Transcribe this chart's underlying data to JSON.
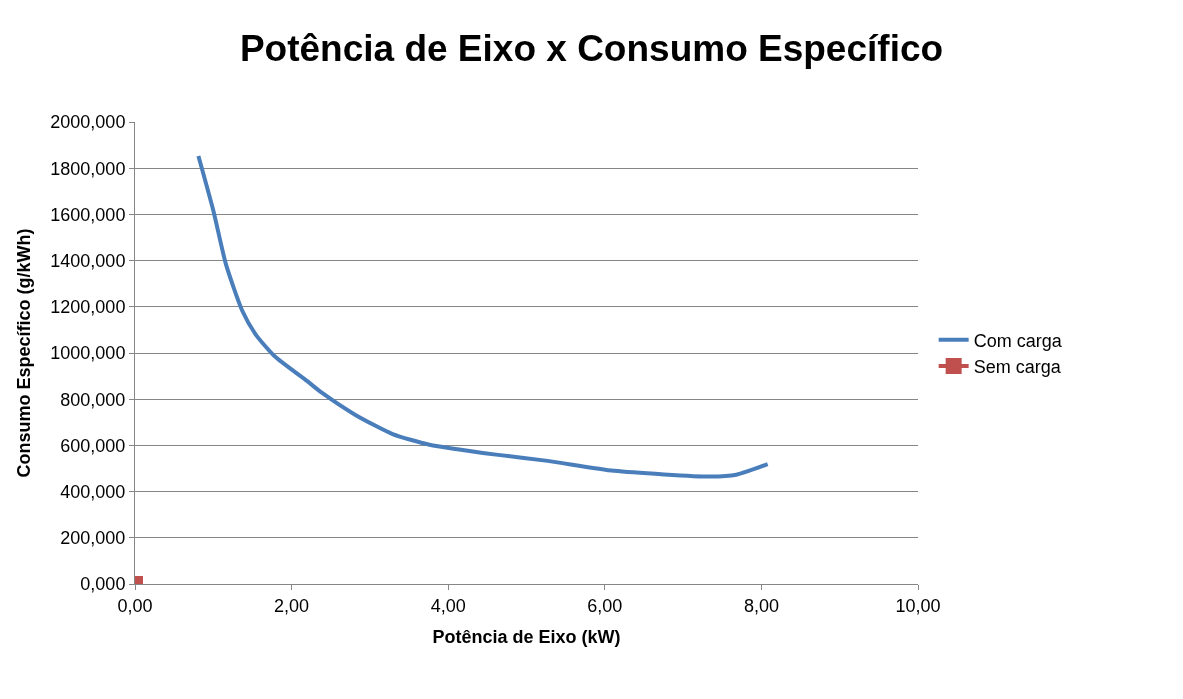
{
  "chart_data": {
    "type": "line",
    "title": "Potência de Eixo x Consumo Específico",
    "xlabel": "Potência de Eixo (kW)",
    "ylabel": "Consumo Específico (g/kWh)",
    "xlim": [
      0,
      10
    ],
    "xticks": [
      {
        "value": 0,
        "label": "0,00"
      },
      {
        "value": 2,
        "label": "2,00"
      },
      {
        "value": 4,
        "label": "4,00"
      },
      {
        "value": 6,
        "label": "6,00"
      },
      {
        "value": 8,
        "label": "8,00"
      },
      {
        "value": 10,
        "label": "10,00"
      }
    ],
    "ylim": [
      0,
      2000
    ],
    "yticks": [
      {
        "value": 0,
        "label": "0,000"
      },
      {
        "value": 200,
        "label": "200,000"
      },
      {
        "value": 400,
        "label": "400,000"
      },
      {
        "value": 600,
        "label": "600,000"
      },
      {
        "value": 800,
        "label": "800,000"
      },
      {
        "value": 1000,
        "label": "1000,000"
      },
      {
        "value": 1200,
        "label": "1200,000"
      },
      {
        "value": 1400,
        "label": "1400,000"
      },
      {
        "value": 1600,
        "label": "1600,000"
      },
      {
        "value": 1800,
        "label": "1800,000"
      },
      {
        "value": 2000,
        "label": "2000,000"
      }
    ],
    "grid": "y",
    "legend": "right",
    "series": [
      {
        "name": "Com carga",
        "color": "#4a7ebb",
        "marker": "none",
        "x": [
          0.81,
          1.0,
          1.16,
          1.37,
          1.54,
          1.78,
          2.2,
          2.39,
          2.81,
          3.29,
          3.76,
          4.61,
          5.27,
          6.12,
          7.35,
          7.68,
          8.08
        ],
        "values": [
          1853,
          1617,
          1386,
          1183,
          1081,
          987,
          878,
          827,
          733,
          649,
          603,
          560,
          533,
          490,
          465,
          473,
          519
        ]
      },
      {
        "name": "Sem carga",
        "color": "#c0504d",
        "marker": "square",
        "x": [
          0
        ],
        "values": [
          0
        ]
      }
    ]
  }
}
